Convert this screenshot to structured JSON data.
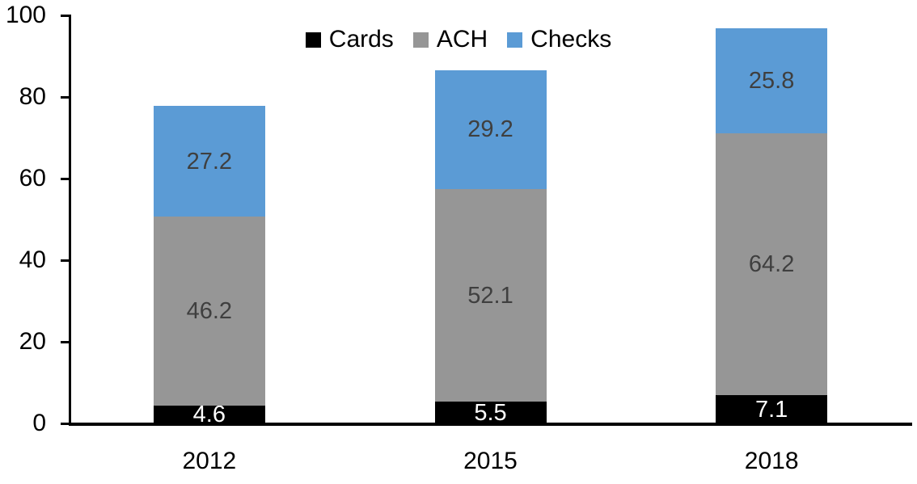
{
  "chart_data": {
    "type": "bar",
    "stacked": true,
    "title": "",
    "categories": [
      "2012",
      "2015",
      "2018"
    ],
    "series": [
      {
        "name": "Cards",
        "color": "#000000",
        "label_color": "#ffffff",
        "values": [
          4.6,
          5.5,
          7.1
        ]
      },
      {
        "name": "ACH",
        "color": "#969696",
        "label_color": "#3f3f3f",
        "values": [
          46.2,
          52.1,
          64.2
        ]
      },
      {
        "name": "Checks",
        "color": "#5b9bd5",
        "label_color": "#3f3f3f",
        "values": [
          27.2,
          29.2,
          25.8
        ]
      }
    ],
    "totals": [
      78.0,
      86.8,
      97.1
    ],
    "y_axis": {
      "min": 0,
      "max": 100,
      "tick_step": 20,
      "ticks": [
        0,
        20,
        40,
        60,
        80,
        100
      ]
    },
    "x_axis": {
      "label": ""
    },
    "legend_position": "top",
    "grid": false,
    "background": "#ffffff",
    "axis_color": "#000000"
  }
}
